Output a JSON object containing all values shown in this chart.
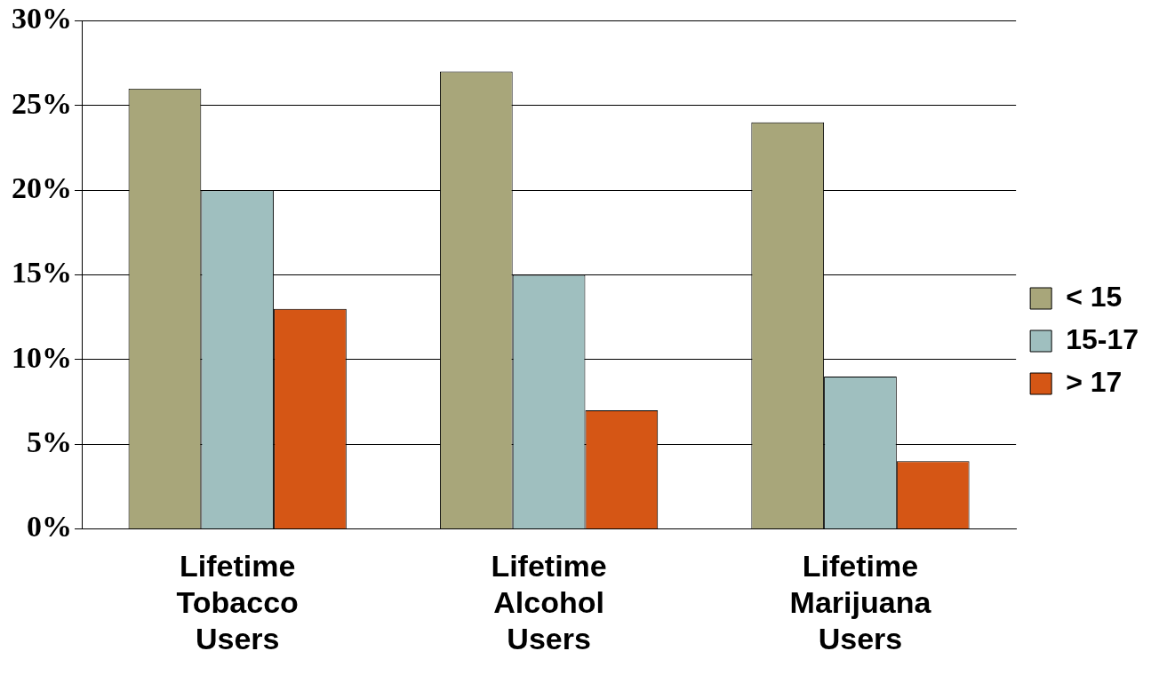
{
  "chart_data": {
    "type": "bar",
    "categories": [
      "Lifetime Tobacco Users",
      "Lifetime Alcohol Users",
      "Lifetime Marijuana Users"
    ],
    "series": [
      {
        "name": "< 15",
        "color": "#a8a67a",
        "values": [
          26,
          27,
          24
        ]
      },
      {
        "name": "15-17",
        "color": "#9fbfbf",
        "values": [
          20,
          15,
          9
        ]
      },
      {
        "name": "> 17",
        "color": "#d55615",
        "values": [
          13,
          7,
          4
        ]
      }
    ],
    "ylim": [
      0,
      30
    ],
    "yticks": [
      {
        "value": 0,
        "label": "0%"
      },
      {
        "value": 5,
        "label": "5%"
      },
      {
        "value": 10,
        "label": "10%"
      },
      {
        "value": 15,
        "label": "15%"
      },
      {
        "value": 20,
        "label": "20%"
      },
      {
        "value": 25,
        "label": "25%"
      },
      {
        "value": 30,
        "label": "30%"
      }
    ],
    "grid": "y",
    "legend": "right"
  }
}
